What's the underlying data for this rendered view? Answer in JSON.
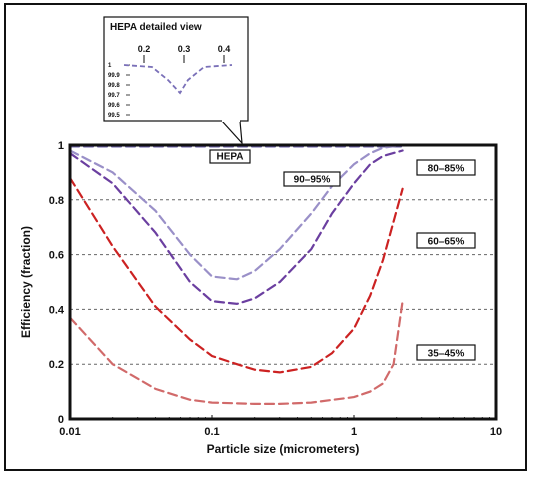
{
  "chart_data": {
    "type": "line",
    "title": "",
    "xlabel": "Particle size (micrometers)",
    "ylabel": "Efficiency (fraction)",
    "xscale": "log",
    "xlim": [
      0.01,
      10
    ],
    "ylim": [
      0,
      1
    ],
    "x_ticks": [
      "0.01",
      "0.1",
      "1",
      "10"
    ],
    "y_ticks": [
      "0",
      "0.2",
      "0.4",
      "0.6",
      "0.8",
      "1"
    ],
    "grid": "horizontal dashed at 0.2, 0.4, 0.6, 0.8",
    "legend": "labels boxed at right",
    "series": [
      {
        "name": "HEPA",
        "color": "#6a5fa8",
        "x": [
          0.01,
          0.05,
          0.1,
          0.5,
          1,
          2.2
        ],
        "y": [
          0.995,
          0.995,
          0.995,
          0.995,
          0.995,
          0.995
        ]
      },
      {
        "name": "90–95%",
        "color": "#9a90c8",
        "x": [
          0.01,
          0.02,
          0.04,
          0.07,
          0.1,
          0.15,
          0.2,
          0.3,
          0.5,
          0.7,
          1,
          1.3,
          1.6,
          2.2
        ],
        "y": [
          0.98,
          0.9,
          0.76,
          0.6,
          0.52,
          0.51,
          0.54,
          0.62,
          0.75,
          0.85,
          0.93,
          0.97,
          0.99,
          1.0
        ]
      },
      {
        "name": "80–85%",
        "color": "#6b3fa0",
        "x": [
          0.01,
          0.02,
          0.04,
          0.07,
          0.1,
          0.15,
          0.2,
          0.3,
          0.5,
          0.7,
          1,
          1.3,
          1.6,
          2.2
        ],
        "y": [
          0.97,
          0.86,
          0.68,
          0.5,
          0.43,
          0.42,
          0.44,
          0.5,
          0.62,
          0.75,
          0.86,
          0.93,
          0.96,
          0.98
        ]
      },
      {
        "name": "60–65%",
        "color": "#cc2222",
        "x": [
          0.01,
          0.02,
          0.04,
          0.07,
          0.1,
          0.15,
          0.2,
          0.3,
          0.5,
          0.7,
          1,
          1.3,
          1.6,
          2.2
        ],
        "y": [
          0.88,
          0.63,
          0.41,
          0.29,
          0.23,
          0.2,
          0.18,
          0.17,
          0.19,
          0.24,
          0.33,
          0.45,
          0.58,
          0.84
        ]
      },
      {
        "name": "35–45%",
        "color": "#d16a6a",
        "x": [
          0.01,
          0.02,
          0.04,
          0.07,
          0.1,
          0.2,
          0.3,
          0.5,
          1,
          1.3,
          1.6,
          1.9,
          2.2
        ],
        "y": [
          0.37,
          0.2,
          0.11,
          0.07,
          0.06,
          0.055,
          0.055,
          0.06,
          0.08,
          0.1,
          0.13,
          0.2,
          0.43
        ]
      }
    ],
    "inset": {
      "title": "HEPA detailed view",
      "x_ticks": [
        "0.2",
        "0.3",
        "0.4"
      ],
      "y_ticks": [
        "1",
        "99.9",
        "99.8",
        "99.7",
        "99.6",
        "99.5"
      ],
      "x": [
        0.15,
        0.22,
        0.26,
        0.29,
        0.31,
        0.35,
        0.42
      ],
      "y": [
        100.0,
        99.98,
        99.85,
        99.72,
        99.85,
        99.98,
        100.0
      ]
    }
  }
}
